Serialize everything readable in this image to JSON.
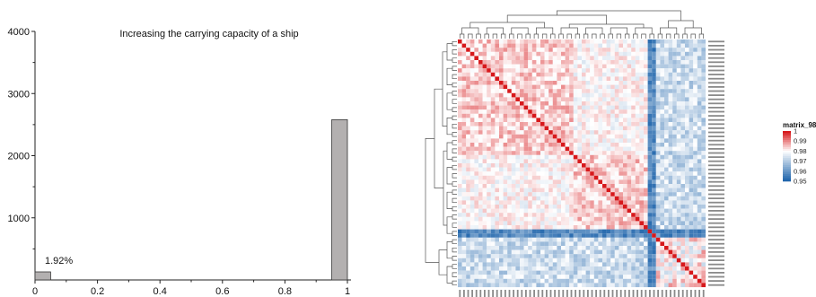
{
  "chart_data": [
    {
      "type": "bar",
      "title": "Increasing the carrying capacity of a ship",
      "xlabel": "",
      "ylabel": "",
      "xlim": [
        0,
        1
      ],
      "ylim": [
        0,
        4000
      ],
      "x_ticks": [
        "0",
        "0.2",
        "0.4",
        "0.6",
        "0.8",
        "1"
      ],
      "y_ticks": [
        "1000",
        "2000",
        "3000",
        "4000"
      ],
      "bars": [
        {
          "x_start": 0.0,
          "x_end": 0.05,
          "value": 130
        },
        {
          "x_start": 0.95,
          "x_end": 1.0,
          "value": 2580
        }
      ],
      "annotations": [
        {
          "text": "1.92%",
          "x": 0.0,
          "y": 130
        }
      ],
      "bar_color": "#b3b0b0",
      "grid": false
    },
    {
      "type": "heatmap",
      "title": "",
      "legend_title": "matrix_98",
      "legend_ticks": [
        "1",
        "0.99",
        "0.98",
        "0.97",
        "0.96",
        "0.95"
      ],
      "value_range": [
        0.95,
        1.0
      ],
      "n_rows": 60,
      "n_cols": 60,
      "groups": [
        {
          "start": 0,
          "end": 46
        },
        {
          "start": 46,
          "end": 48
        },
        {
          "start": 48,
          "end": 60
        }
      ],
      "colors": {
        "high": "#d7191c",
        "mid": "#ffffff",
        "low": "#2166ac"
      },
      "dendrogram": {
        "rows": true,
        "cols": true
      }
    }
  ]
}
